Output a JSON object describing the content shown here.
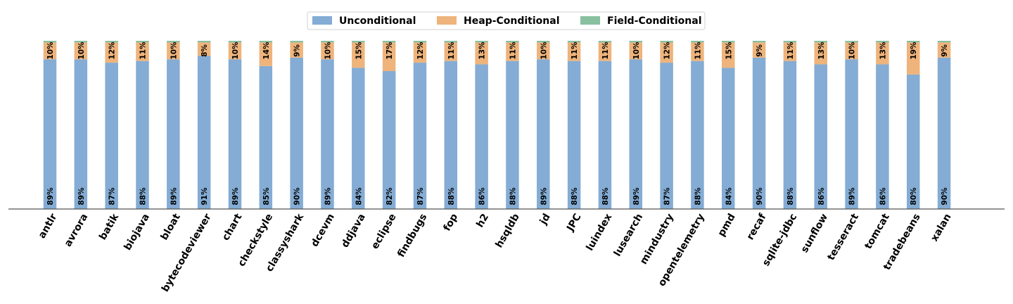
{
  "chart_data": {
    "type": "bar",
    "stacked": true,
    "normalized": true,
    "legend_position": "top-center",
    "grid": false,
    "ylim": [
      0,
      100
    ],
    "categories": [
      "antlr",
      "avrora",
      "batik",
      "biojava",
      "bloat",
      "bytecodeviewer",
      "chart",
      "checkstyle",
      "classyshark",
      "dcevm",
      "ddjava",
      "eclipse",
      "findbugs",
      "fop",
      "h2",
      "hsqldb",
      "jd",
      "JPC",
      "luindex",
      "lusearch",
      "mindustry",
      "opentelemetry",
      "pmd",
      "recaf",
      "sqlite-jdbc",
      "sunflow",
      "tesseract",
      "tomcat",
      "tradebeans",
      "xalan"
    ],
    "series": [
      {
        "name": "Unconditional",
        "color": "#84acd4",
        "values": [
          89,
          89,
          87,
          88,
          89,
          91,
          89,
          85,
          90,
          89,
          84,
          82,
          87,
          88,
          86,
          88,
          89,
          88,
          88,
          89,
          87,
          88,
          84,
          90,
          88,
          86,
          89,
          86,
          80,
          90
        ],
        "labels": [
          "89%",
          "89%",
          "87%",
          "88%",
          "89%",
          "91%",
          "89%",
          "85%",
          "90%",
          "89%",
          "84%",
          "82%",
          "87%",
          "88%",
          "86%",
          "88%",
          "89%",
          "88%",
          "88%",
          "89%",
          "87%",
          "88%",
          "84%",
          "90%",
          "88%",
          "86%",
          "89%",
          "86%",
          "80%",
          "90%"
        ]
      },
      {
        "name": "Heap-Conditional",
        "color": "#eeb47c",
        "values": [
          10,
          10,
          12,
          11,
          10,
          8,
          10,
          14,
          9,
          10,
          15,
          17,
          12,
          11,
          13,
          11,
          10,
          11,
          11,
          10,
          12,
          11,
          15,
          9,
          11,
          13,
          10,
          13,
          19,
          9
        ],
        "labels": [
          "10%",
          "10%",
          "12%",
          "11%",
          "10%",
          "8%",
          "10%",
          "14%",
          "9%",
          "10%",
          "15%",
          "17%",
          "12%",
          "11%",
          "13%",
          "11%",
          "10%",
          "11%",
          "11%",
          "10%",
          "12%",
          "11%",
          "15%",
          "9%",
          "11%",
          "13%",
          "10%",
          "13%",
          "19%",
          "9%"
        ]
      },
      {
        "name": "Field-Conditional",
        "color": "#88c0a0",
        "values": [
          1,
          1,
          1,
          1,
          1,
          1,
          1,
          1,
          1,
          1,
          1,
          1,
          1,
          1,
          1,
          1,
          1,
          1,
          1,
          1,
          1,
          1,
          1,
          1,
          1,
          1,
          1,
          1,
          1,
          1
        ]
      }
    ]
  }
}
